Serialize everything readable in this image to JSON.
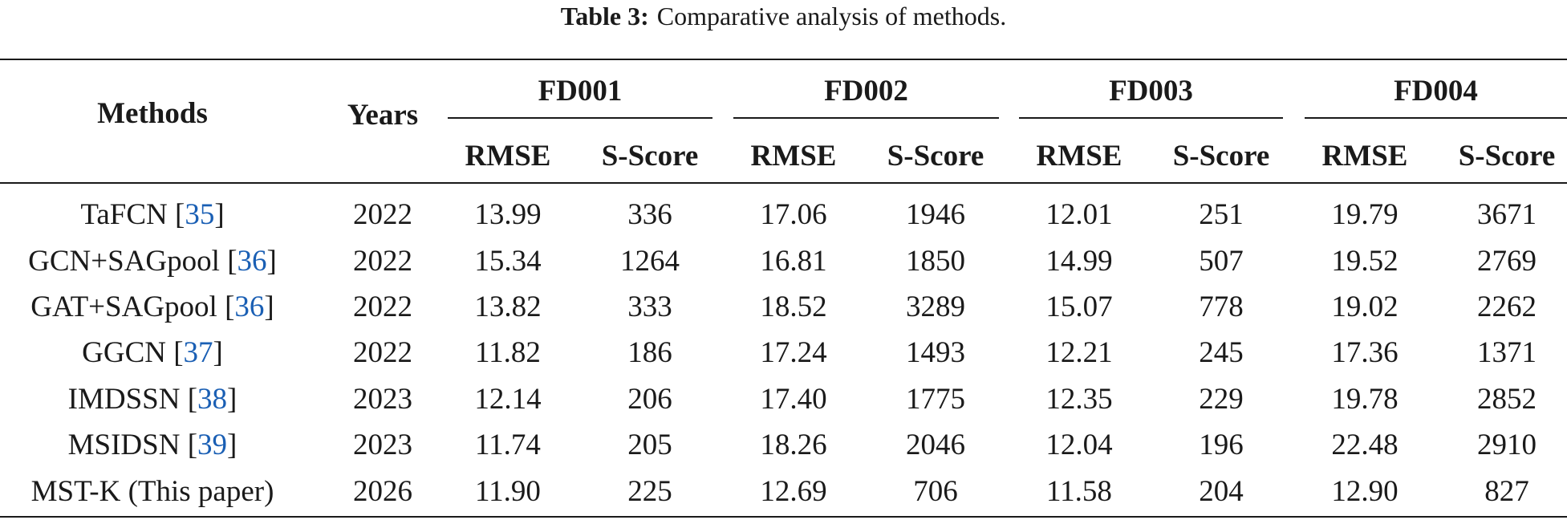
{
  "caption": {
    "label": "Table 3:",
    "text": "Comparative analysis of methods."
  },
  "table": {
    "header": {
      "methods": "Methods",
      "years": "Years",
      "groups": [
        "FD001",
        "FD002",
        "FD003",
        "FD004"
      ],
      "subcols": [
        "RMSE",
        "S-Score",
        "RMSE",
        "S-Score",
        "RMSE",
        "S-Score",
        "RMSE",
        "S-Score"
      ]
    },
    "rows": [
      {
        "method": "TaFCN",
        "ref": "35",
        "year": "2022",
        "values": [
          "13.99",
          "336",
          "17.06",
          "1946",
          "12.01",
          "251",
          "19.79",
          "3671"
        ]
      },
      {
        "method": "GCN+SAGpool",
        "ref": "36",
        "year": "2022",
        "values": [
          "15.34",
          "1264",
          "16.81",
          "1850",
          "14.99",
          "507",
          "19.52",
          "2769"
        ]
      },
      {
        "method": "GAT+SAGpool",
        "ref": "36",
        "year": "2022",
        "values": [
          "13.82",
          "333",
          "18.52",
          "3289",
          "15.07",
          "778",
          "19.02",
          "2262"
        ]
      },
      {
        "method": "GGCN",
        "ref": "37",
        "year": "2022",
        "values": [
          "11.82",
          "186",
          "17.24",
          "1493",
          "12.21",
          "245",
          "17.36",
          "1371"
        ]
      },
      {
        "method": "IMDSSN",
        "ref": "38",
        "year": "2023",
        "values": [
          "12.14",
          "206",
          "17.40",
          "1775",
          "12.35",
          "229",
          "19.78",
          "2852"
        ]
      },
      {
        "method": "MSIDSN",
        "ref": "39",
        "year": "2023",
        "values": [
          "11.74",
          "205",
          "18.26",
          "2046",
          "12.04",
          "196",
          "22.48",
          "2910"
        ]
      },
      {
        "method": "MST-K (This paper)",
        "ref": "",
        "year": "2026",
        "values": [
          "11.90",
          "225",
          "12.69",
          "706",
          "11.58",
          "204",
          "12.90",
          "827"
        ]
      }
    ]
  },
  "colors": {
    "text": "#1a1a1a",
    "reference_link": "#1a5fb4",
    "rule": "#1a1a1a"
  }
}
